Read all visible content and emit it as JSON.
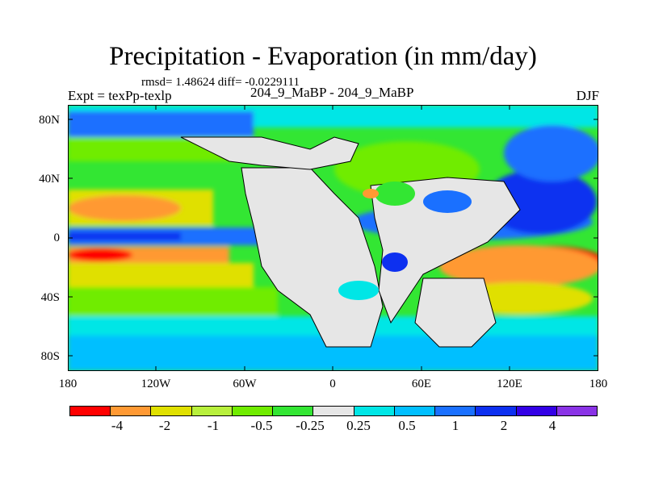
{
  "plot": {
    "title": "Precipitation - Evaporation (in mm/day)",
    "stats": "rmsd= 1.48624 diff= -0.0229111",
    "expt": "Expt = texPp-texlp",
    "case": "204_9_MaBP - 204_9_MaBP",
    "season": "DJF"
  },
  "axes": {
    "y_ticks": [
      "80N",
      "40N",
      "0",
      "40S",
      "80S"
    ],
    "x_ticks": [
      "180",
      "120W",
      "60W",
      "0",
      "60E",
      "120E",
      "180"
    ]
  },
  "colorbar": {
    "colors": [
      "#ff0000",
      "#ff9933",
      "#e0e000",
      "#b8f03c",
      "#70ec00",
      "#33e633",
      "#e6e6e6",
      "#00e6e6",
      "#00bfff",
      "#1a70ff",
      "#0d30f0",
      "#3300e6",
      "#8a33e6"
    ],
    "labels": [
      "-4",
      "-2",
      "-1",
      "-0.5",
      "-0.25",
      "0.25",
      "0.5",
      "1",
      "2",
      "4"
    ]
  },
  "colors": {
    "land": "#e6e6e6",
    "coast": "#000000"
  }
}
